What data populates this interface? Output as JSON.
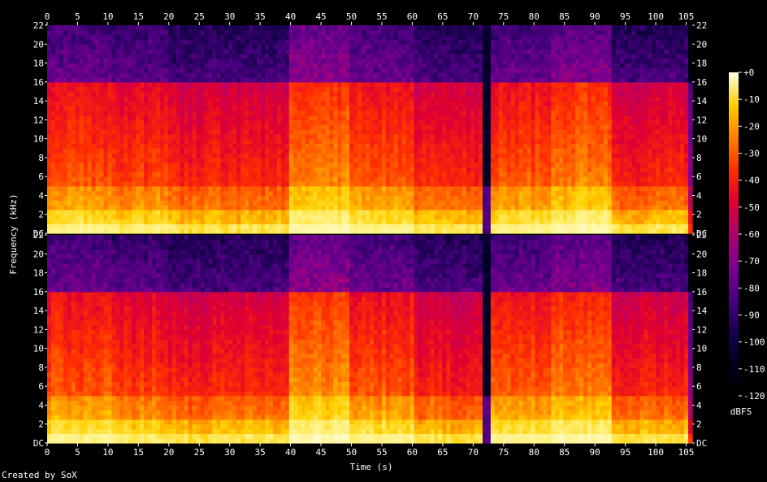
{
  "chart_data": {
    "type": "heatmap",
    "title": "",
    "xlabel": "Time (s)",
    "ylabel": "Frequency (kHz)",
    "colorbar_label": "dBFS",
    "xlim": [
      0,
      106
    ],
    "ylim": [
      0,
      22
    ],
    "x_ticks": [
      "0",
      "5",
      "10",
      "15",
      "20",
      "25",
      "30",
      "35",
      "40",
      "45",
      "50",
      "55",
      "60",
      "65",
      "70",
      "75",
      "80",
      "85",
      "90",
      "95",
      "100",
      "105"
    ],
    "x_tick_values": [
      0,
      5,
      10,
      15,
      20,
      25,
      30,
      35,
      40,
      45,
      50,
      55,
      60,
      65,
      70,
      75,
      80,
      85,
      90,
      95,
      100,
      105
    ],
    "y_ticks": [
      "DC",
      "2",
      "4",
      "6",
      "8",
      "10",
      "12",
      "14",
      "16",
      "18",
      "20",
      "22"
    ],
    "y_tick_values": [
      0,
      2,
      4,
      6,
      8,
      10,
      12,
      14,
      16,
      18,
      20,
      22
    ],
    "colorbar_ticks": [
      "+0",
      "-10",
      "-20",
      "-30",
      "-40",
      "-50",
      "-60",
      "-70",
      "-80",
      "-90",
      "-100",
      "-110",
      "-120"
    ],
    "colorbar_range": [
      -120,
      0
    ],
    "channels": 2,
    "lowpass_cutoff_khz": 16,
    "segments": [
      {
        "start": 0,
        "end": 10.5,
        "level_db": -45
      },
      {
        "start": 10.5,
        "end": 20,
        "level_db": -48
      },
      {
        "start": 20,
        "end": 40,
        "level_db": -52
      },
      {
        "start": 40,
        "end": 50,
        "level_db": -38
      },
      {
        "start": 50,
        "end": 60,
        "level_db": -45
      },
      {
        "start": 60,
        "end": 71.5,
        "level_db": -52
      },
      {
        "start": 71.5,
        "end": 73,
        "level_db": -105
      },
      {
        "start": 73,
        "end": 83,
        "level_db": -45
      },
      {
        "start": 83,
        "end": 93,
        "level_db": -40
      },
      {
        "start": 93,
        "end": 105.5,
        "level_db": -52
      },
      {
        "start": 105.5,
        "end": 106,
        "level_db": -75
      }
    ],
    "colors": {
      "background": "#000000",
      "axis": "#ffffff"
    }
  },
  "footer": {
    "created_by": "Created by SoX"
  }
}
